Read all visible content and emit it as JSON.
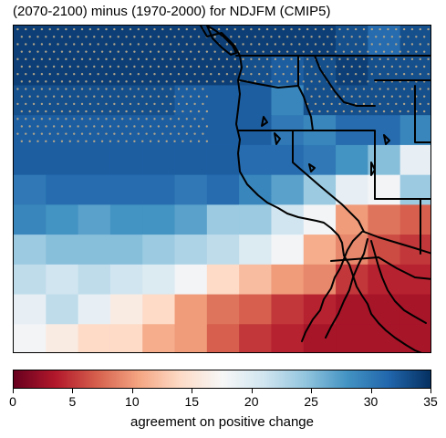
{
  "title": "(2070-2100) minus (1970-2000) for NDJFM (CMIP5)",
  "colorbar": {
    "label": "agreement on positive change",
    "min": 0,
    "max": 35,
    "ticks": [
      "0",
      "5",
      "10",
      "15",
      "20",
      "25",
      "30",
      "35"
    ],
    "colormap": "RdBu",
    "colors": [
      "#67001f",
      "#b2182b",
      "#d6604d",
      "#f4a582",
      "#fddbc7",
      "#f7f7f7",
      "#d1e5f0",
      "#92c5de",
      "#4393c3",
      "#2166ac",
      "#053061"
    ]
  },
  "map": {
    "region": "Western North America",
    "stippling_color": "#b0a48a",
    "grid_rows": 11,
    "grid_cols": 13,
    "agreement_grid": [
      [
        34,
        34,
        34,
        34,
        34,
        34,
        34,
        34,
        34,
        34,
        33,
        31,
        33
      ],
      [
        34,
        34,
        34,
        34,
        34,
        34,
        34,
        33,
        32,
        33,
        34,
        33,
        33
      ],
      [
        33,
        33,
        33,
        33,
        33,
        32,
        32,
        32,
        29,
        33,
        33,
        33,
        33
      ],
      [
        32,
        32,
        32,
        32,
        32,
        32,
        32,
        32,
        30,
        29,
        31,
        31,
        29
      ],
      [
        32,
        32,
        32,
        32,
        32,
        32,
        32,
        31,
        31,
        30,
        28,
        25,
        19
      ],
      [
        30,
        31,
        31,
        31,
        31,
        30,
        31,
        29,
        27,
        24,
        19,
        18,
        24
      ],
      [
        29,
        28,
        27,
        28,
        28,
        27,
        24,
        24,
        21,
        18,
        10,
        8,
        7
      ],
      [
        24,
        25,
        25,
        25,
        24,
        23,
        22,
        20,
        18,
        11,
        9,
        6,
        5
      ],
      [
        22,
        21,
        22,
        21,
        20,
        18,
        14,
        12,
        10,
        9,
        5,
        4,
        4
      ],
      [
        19,
        22,
        19,
        16,
        14,
        10,
        8,
        7,
        5,
        4,
        3,
        3,
        3
      ],
      [
        18,
        16,
        14,
        14,
        11,
        10,
        7,
        5,
        4,
        3,
        3,
        3,
        3
      ]
    ],
    "stipple_grid": [
      [
        1,
        1,
        1,
        1,
        1,
        1,
        1,
        1,
        1,
        1,
        1,
        1,
        1
      ],
      [
        1,
        1,
        1,
        1,
        1,
        1,
        1,
        1,
        1,
        1,
        1,
        1,
        1
      ],
      [
        1,
        1,
        1,
        1,
        1,
        1,
        0,
        0,
        0,
        1,
        1,
        1,
        1
      ],
      [
        1,
        1,
        1,
        1,
        1,
        1,
        0,
        0,
        0,
        0,
        0,
        0,
        0
      ],
      [
        0,
        0,
        0,
        0,
        0,
        0,
        0,
        0,
        0,
        0,
        0,
        0,
        0
      ],
      [
        0,
        0,
        0,
        0,
        0,
        0,
        0,
        0,
        0,
        0,
        0,
        0,
        0
      ],
      [
        0,
        0,
        0,
        0,
        0,
        0,
        0,
        0,
        0,
        0,
        0,
        0,
        0
      ],
      [
        0,
        0,
        0,
        0,
        0,
        0,
        0,
        0,
        0,
        0,
        0,
        0,
        0
      ],
      [
        0,
        0,
        0,
        0,
        0,
        0,
        0,
        0,
        0,
        0,
        0,
        0,
        0
      ],
      [
        0,
        0,
        0,
        0,
        0,
        0,
        0,
        0,
        0,
        0,
        0,
        0,
        0
      ],
      [
        0,
        0,
        0,
        0,
        0,
        0,
        0,
        0,
        0,
        0,
        0,
        0,
        0
      ]
    ]
  }
}
